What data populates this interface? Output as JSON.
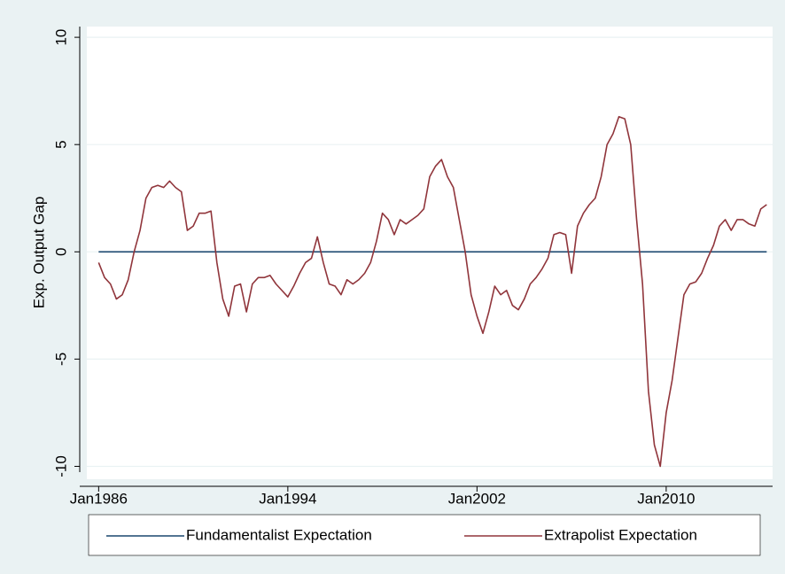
{
  "chart_data": {
    "type": "line",
    "y_label": "Exp. Output Gap",
    "xlim": [
      "1985-07",
      "2014-07"
    ],
    "xticks": [
      {
        "value": "1986-01",
        "label": "Jan1986"
      },
      {
        "value": "1994-01",
        "label": "Jan1994"
      },
      {
        "value": "2002-01",
        "label": "Jan2002"
      },
      {
        "value": "2010-01",
        "label": "Jan2010"
      }
    ],
    "ylim": [
      -10.6,
      10.5
    ],
    "yticks": [
      -10,
      -5,
      0,
      5,
      10
    ],
    "grid": true,
    "legend": "bottom",
    "series": [
      {
        "name": "Fundamentalist Expectation",
        "color": "#1a476f",
        "x": [
          "1986-01",
          "2014-04"
        ],
        "values": [
          0,
          0
        ]
      },
      {
        "name": "Extrapolist Expectation",
        "color": "#90353b",
        "x": [
          "1986-01",
          "1986-04",
          "1986-07",
          "1986-10",
          "1987-01",
          "1987-04",
          "1987-07",
          "1987-10",
          "1988-01",
          "1988-04",
          "1988-07",
          "1988-10",
          "1989-01",
          "1989-04",
          "1989-07",
          "1989-10",
          "1990-01",
          "1990-04",
          "1990-07",
          "1990-10",
          "1991-01",
          "1991-04",
          "1991-07",
          "1991-10",
          "1992-01",
          "1992-04",
          "1992-07",
          "1992-10",
          "1993-01",
          "1993-04",
          "1993-07",
          "1993-10",
          "1994-01",
          "1994-04",
          "1994-07",
          "1994-10",
          "1995-01",
          "1995-04",
          "1995-07",
          "1995-10",
          "1996-01",
          "1996-04",
          "1996-07",
          "1996-10",
          "1997-01",
          "1997-04",
          "1997-07",
          "1997-10",
          "1998-01",
          "1998-04",
          "1998-07",
          "1998-10",
          "1999-01",
          "1999-04",
          "1999-07",
          "1999-10",
          "2000-01",
          "2000-04",
          "2000-07",
          "2000-10",
          "2001-01",
          "2001-04",
          "2001-07",
          "2001-10",
          "2002-01",
          "2002-04",
          "2002-07",
          "2002-10",
          "2003-01",
          "2003-04",
          "2003-07",
          "2003-10",
          "2004-01",
          "2004-04",
          "2004-07",
          "2004-10",
          "2005-01",
          "2005-04",
          "2005-07",
          "2005-10",
          "2006-01",
          "2006-04",
          "2006-07",
          "2006-10",
          "2007-01",
          "2007-04",
          "2007-07",
          "2007-10",
          "2008-01",
          "2008-04",
          "2008-07",
          "2008-10",
          "2009-01",
          "2009-04",
          "2009-07",
          "2009-10",
          "2010-01",
          "2010-04",
          "2010-07",
          "2010-10",
          "2011-01",
          "2011-04",
          "2011-07",
          "2011-10",
          "2012-01",
          "2012-04",
          "2012-07",
          "2012-10",
          "2013-01",
          "2013-04",
          "2013-07",
          "2013-10",
          "2014-01",
          "2014-04"
        ],
        "values": [
          -0.5,
          -1.2,
          -1.5,
          -2.2,
          -2.0,
          -1.3,
          0,
          1.0,
          2.5,
          3.0,
          3.1,
          3.0,
          3.3,
          3.0,
          2.8,
          1.0,
          1.2,
          1.8,
          1.8,
          1.9,
          -0.5,
          -2.2,
          -3.0,
          -1.6,
          -1.5,
          -2.8,
          -1.5,
          -1.2,
          -1.2,
          -1.1,
          -1.5,
          -1.8,
          -2.1,
          -1.6,
          -1.0,
          -0.5,
          -0.3,
          0.7,
          -0.5,
          -1.5,
          -1.6,
          -2.0,
          -1.3,
          -1.5,
          -1.3,
          -1.0,
          -0.5,
          0.5,
          1.8,
          1.5,
          0.8,
          1.5,
          1.3,
          1.5,
          1.7,
          2.0,
          3.5,
          4.0,
          4.3,
          3.5,
          3.0,
          1.5,
          0,
          -2.0,
          -3.0,
          -3.8,
          -2.8,
          -1.6,
          -2.0,
          -1.8,
          -2.5,
          -2.7,
          -2.2,
          -1.5,
          -1.2,
          -0.8,
          -0.3,
          0.8,
          0.9,
          0.8,
          -1.0,
          1.2,
          1.8,
          2.2,
          2.5,
          3.5,
          5.0,
          5.5,
          6.3,
          6.2,
          5.0,
          1.5,
          -1.5,
          -6.5,
          -9.0,
          -10.0,
          -7.5,
          -6.0,
          -4.0,
          -2.0,
          -1.5,
          -1.4,
          -1.0,
          -0.3,
          0.3,
          1.2,
          1.5,
          1.0,
          1.5,
          1.5,
          1.3,
          1.2,
          2.0,
          2.2
        ]
      }
    ]
  }
}
